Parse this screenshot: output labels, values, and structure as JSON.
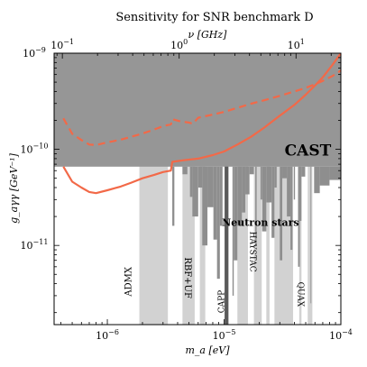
{
  "chart_data": {
    "type": "line",
    "title": "Sensitivity for SNR benchmark D",
    "xlabel": "m_a [eV]",
    "xlabel_top": "ν [GHz]",
    "ylabel": "g_aγγ [GeV⁻¹]",
    "xscale": "log",
    "yscale": "log",
    "xlim": [
      3.5e-07,
      0.0001
    ],
    "ylim": [
      1.5e-12,
      1e-09
    ],
    "x_top_lim": [
      0.085,
      24.2
    ],
    "x_ticks": [
      {
        "value": 1e-06,
        "label": "10",
        "exp": "−6"
      },
      {
        "value": 1e-05,
        "label": "10",
        "exp": "−5"
      },
      {
        "value": 0.0001,
        "label": "10",
        "exp": "−4"
      }
    ],
    "x_top_ticks": [
      {
        "value": 0.1,
        "label": "10",
        "exp": "−1"
      },
      {
        "value": 1,
        "label": "10",
        "exp": "0"
      },
      {
        "value": 10,
        "label": "10",
        "exp": "1"
      }
    ],
    "y_ticks": [
      {
        "value": 1e-11,
        "label": "10",
        "exp": "−11"
      },
      {
        "value": 1e-10,
        "label": "10",
        "exp": "−10"
      },
      {
        "value": 1e-09,
        "label": "10",
        "exp": "−9"
      }
    ],
    "colors": {
      "cast": "#969696",
      "haloscope": "#d2d2d2",
      "haloscope_dark": "#8e8e8e",
      "capp": "#5a5a5a",
      "series": "#f26948",
      "outline": "#000000"
    },
    "cast_limit": 6.6e-11,
    "series": [
      {
        "style": "solid",
        "x": [
          4.2e-07,
          5e-07,
          6e-07,
          7e-07,
          8e-07,
          1e-06,
          1.3e-06,
          1.6e-06,
          2e-06,
          2.5e-06,
          3e-06,
          3.5e-06,
          3.6e-06,
          4.5e-06,
          6e-06,
          8e-06,
          1e-05,
          1.3e-05,
          1.7e-05,
          2.2e-05,
          3e-05,
          4e-05,
          5e-05,
          6e-05,
          7e-05,
          8.5e-05,
          0.0001
        ],
        "y": [
          6.6e-11,
          4.6e-11,
          4e-11,
          3.6e-11,
          3.5e-11,
          3.75e-11,
          4.1e-11,
          4.5e-11,
          5e-11,
          5.4e-11,
          5.8e-11,
          6e-11,
          7.4e-11,
          7.7e-11,
          8e-11,
          8.7e-11,
          9.5e-11,
          1.12e-10,
          1.35e-10,
          1.68e-10,
          2.24e-10,
          2.9e-10,
          3.7e-10,
          4.6e-10,
          5.6e-10,
          7.6e-10,
          1e-09
        ]
      },
      {
        "style": "dashed",
        "x": [
          4.2e-07,
          5e-07,
          6e-07,
          7e-07,
          8e-07,
          1e-06,
          1.3e-06,
          1.6e-06,
          2e-06,
          2.5e-06,
          3e-06,
          3.5e-06,
          3.6e-06,
          4.3e-06,
          5e-06,
          5.4e-06,
          6e-06,
          8e-06,
          1e-05,
          1.3e-05,
          1.7e-05,
          2.2e-05,
          3e-05,
          4e-05,
          5e-05,
          6e-05,
          7e-05,
          8.5e-05,
          0.0001
        ],
        "y": [
          2.1e-10,
          1.45e-10,
          1.25e-10,
          1.12e-10,
          1.11e-10,
          1.18e-10,
          1.26e-10,
          1.35e-10,
          1.46e-10,
          1.6e-10,
          1.74e-10,
          1.82e-10,
          2.06e-10,
          1.94e-10,
          1.9e-10,
          1.85e-10,
          2.13e-10,
          2.3e-10,
          2.45e-10,
          2.7e-10,
          2.98e-10,
          3.24e-10,
          3.6e-10,
          4e-10,
          4.35e-10,
          4.75e-10,
          5.15e-10,
          5.8e-10,
          6.6e-10
        ]
      }
    ],
    "light_bands": [
      [
        1.88e-06,
        2e-06
      ],
      [
        2e-06,
        3.3e-06
      ],
      [
        4.4e-06,
        5.6e-06
      ],
      [
        6.2e-06,
        6.9e-06
      ],
      [
        1.3e-05,
        1.6e-05
      ],
      [
        1.8e-05,
        2.1e-05
      ],
      [
        2.3e-05,
        2.45e-05
      ],
      [
        2.7e-05,
        3.9e-05
      ],
      [
        4.4e-05,
        4.6e-05
      ],
      [
        5.2e-05,
        5.7e-05
      ]
    ],
    "dark_bands": [
      {
        "x0": 3.6e-06,
        "x1": 3.75e-06,
        "y": 1.6e-11
      },
      {
        "x0": 4.4e-06,
        "x1": 4.85e-06,
        "y": 5.5e-11
      },
      {
        "x0": 5.1e-06,
        "x1": 5.35e-06,
        "y": 3.2e-11
      },
      {
        "x0": 5.35e-06,
        "x1": 6e-06,
        "y": 2e-11
      },
      {
        "x0": 6e-06,
        "x1": 6.5e-06,
        "y": 4e-11
      },
      {
        "x0": 6.5e-06,
        "x1": 7.2e-06,
        "y": 1e-11
      },
      {
        "x0": 7.2e-06,
        "x1": 8.1e-06,
        "y": 2.5e-11
      },
      {
        "x0": 8.1e-06,
        "x1": 8.7e-06,
        "y": 1.15e-11
      },
      {
        "x0": 8.7e-06,
        "x1": 9.2e-06,
        "y": 4.5e-12
      },
      {
        "x0": 9.2e-06,
        "x1": 9.7e-06,
        "y": 1.6e-11
      },
      {
        "x0": 1.04e-05,
        "x1": 1.08e-05,
        "y": 1.4e-11
      },
      {
        "x0": 1.18e-05,
        "x1": 1.21e-05,
        "y": 3e-12
      },
      {
        "x0": 1.21e-05,
        "x1": 1.3e-05,
        "y": 7e-12
      },
      {
        "x0": 1.3e-05,
        "x1": 1.42e-05,
        "y": 1.6e-11
      },
      {
        "x0": 1.42e-05,
        "x1": 1.52e-05,
        "y": 2.2e-11
      },
      {
        "x0": 1.52e-05,
        "x1": 1.65e-05,
        "y": 3.4e-11
      },
      {
        "x0": 1.65e-05,
        "x1": 1.8e-05,
        "y": 5.5e-11
      },
      {
        "x0": 1.85e-05,
        "x1": 1.9e-05,
        "y": 1e-11
      },
      {
        "x0": 2.05e-05,
        "x1": 2.12e-05,
        "y": 3e-11
      },
      {
        "x0": 2.12e-05,
        "x1": 2.3e-05,
        "y": 1.4e-11
      },
      {
        "x0": 2.3e-05,
        "x1": 2.55e-05,
        "y": 2.8e-11
      },
      {
        "x0": 2.55e-05,
        "x1": 2.7e-05,
        "y": 1.2e-11
      },
      {
        "x0": 2.7e-05,
        "x1": 2.82e-05,
        "y": 4e-11
      },
      {
        "x0": 3e-05,
        "x1": 3.15e-05,
        "y": 7e-12
      },
      {
        "x0": 3.15e-05,
        "x1": 3.45e-05,
        "y": 5e-11
      },
      {
        "x0": 3.45e-05,
        "x1": 3.7e-05,
        "y": 2e-11
      },
      {
        "x0": 3.7e-05,
        "x1": 3.85e-05,
        "y": 9e-12
      },
      {
        "x0": 3.95e-05,
        "x1": 4.05e-05,
        "y": 3e-11
      },
      {
        "x0": 4.3e-05,
        "x1": 4.45e-05,
        "y": 6e-12
      },
      {
        "x0": 4.45e-05,
        "x1": 4.6e-05,
        "y": 1.8e-11
      },
      {
        "x0": 4.6e-05,
        "x1": 4.95e-05,
        "y": 5.2e-11
      },
      {
        "x0": 5.5e-05,
        "x1": 5.58e-05,
        "y": 2.5e-12
      },
      {
        "x0": 5.9e-05,
        "x1": 6.6e-05,
        "y": 3.5e-11
      },
      {
        "x0": 6.6e-05,
        "x1": 8e-05,
        "y": 4.2e-11
      },
      {
        "x0": 8e-05,
        "x1": 0.0001,
        "y": 4.8e-11
      }
    ],
    "capp_bands": [
      [
        1.01e-05,
        1.09e-05
      ]
    ],
    "annotations": [
      {
        "text": "CAST",
        "x": 3.3e-05,
        "y": 8.6e-11,
        "style": "cast"
      },
      {
        "text": "Neutron stars",
        "x": 2.05e-05,
        "y": 1.6e-11,
        "style": "ns"
      },
      {
        "text": "ADMX",
        "x": 1.6e-06,
        "y": 4.2e-12,
        "style": "vert-light"
      },
      {
        "text": "RBF+UF",
        "x": 4.6e-06,
        "y": 4.6e-12,
        "style": "vert-mirror"
      },
      {
        "text": "CAPP",
        "x": 1e-05,
        "y": 2.6e-12,
        "style": "vert-dark"
      },
      {
        "text": "HAYSTAC",
        "x": 1.68e-05,
        "y": 8.6e-12,
        "style": "vert-mirror-light"
      },
      {
        "text": "QUAX",
        "x": 4.3e-05,
        "y": 3.1e-12,
        "style": "vert-mirror-light"
      }
    ]
  }
}
